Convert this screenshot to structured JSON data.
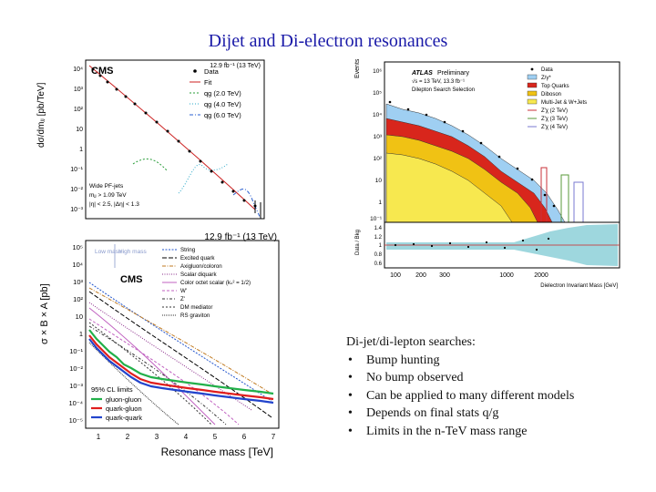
{
  "slide": {
    "title": "Dijet and Di-electron resonances",
    "notes_heading": "Di-jet/di-lepton searches:",
    "bullets": [
      "Bump hunting",
      "No bump observed",
      "Can be applied to many different models",
      "Depends on final stats q/g",
      "Limits in the n-TeV mass range"
    ]
  },
  "cms_dijet_plot": {
    "experiment": "CMS",
    "lumi_label": "12.9 fb⁻¹ (13 TeV)",
    "ylabel": "dσ/dmⱼⱼ [pb/TeV]",
    "yticks": [
      "10⁴",
      "10³",
      "10²",
      "10",
      "1",
      "10⁻¹",
      "10⁻²",
      "10⁻³"
    ],
    "legend": [
      "Data",
      "Fit",
      "qg (2.0 TeV)",
      "qg (4.0 TeV)",
      "qg (6.0 TeV)"
    ],
    "info": [
      "Wide PF-jets",
      "mⱼⱼ > 1.09 TeV",
      "|η| < 2.5, |Δη| < 1.3"
    ],
    "colors": {
      "data": "#000000",
      "fit": "#cc2222",
      "qg2": "#2a9d3a",
      "qg4": "#2aa8c8",
      "qg6": "#2a5fd0"
    }
  },
  "cms_limits_plot": {
    "experiment": "CMS",
    "lumi_label": "12.9 fb⁻¹ (13 TeV)",
    "ylabel": "σ × B × A [pb]",
    "xlabel": "Resonance mass [TeV]",
    "xticks": [
      "1",
      "2",
      "3",
      "4",
      "5",
      "6",
      "7"
    ],
    "yticks": [
      "10⁵",
      "10⁴",
      "10³",
      "10²",
      "10",
      "1",
      "10⁻¹",
      "10⁻²",
      "10⁻³",
      "10⁻⁴",
      "10⁻⁵"
    ],
    "regions": [
      "Low mass",
      "High mass"
    ],
    "legend_models": [
      "String",
      "Excited quark",
      "Axigluon/coloron",
      "Scalar diquark",
      "Color octet scalar (kₛ² = 1/2)",
      "W'",
      "Z'",
      "DM mediator",
      "RS graviton"
    ],
    "limits_title": "95% CL limits",
    "limits": [
      "gluon-gluon",
      "quark-gluon",
      "quark-quark"
    ],
    "colors": {
      "gg": "#22b04a",
      "qg": "#e01e1e",
      "qq": "#2244cc"
    }
  },
  "atlas_plot": {
    "experiment": "ATLAS",
    "status": "Preliminary",
    "energy": "√s = 13 TeV, 13.3 fb⁻¹",
    "selection": "Dilepton Search Selection",
    "ylabel": "Events",
    "ratio_label": "Data / Bkg",
    "xlabel": "Dielectron Invariant Mass [GeV]",
    "yticks": [
      "10⁶",
      "10⁵",
      "10⁴",
      "10³",
      "10²",
      "10",
      "1",
      "10⁻¹"
    ],
    "ratio_ticks": [
      "1.4",
      "1.2",
      "1",
      "0.8",
      "0.6"
    ],
    "xticks": [
      "100",
      "200",
      "300",
      "1000",
      "2000"
    ],
    "legend": [
      "Data",
      "Z/γ*",
      "Top Quarks",
      "Diboson",
      "Multi-Jet & W+Jets",
      "Z'χ (2 TeV)",
      "Z'χ (3 TeV)",
      "Z'χ (4 TeV)"
    ],
    "colors": {
      "zgamma": "#9fcff2",
      "top": "#d8261c",
      "diboson": "#f0c214",
      "multijet": "#f7e84f",
      "zp2": "#c8303a",
      "zp3": "#5a9a3a",
      "zp4": "#7a7ad0",
      "band": "#86cdd6"
    }
  }
}
